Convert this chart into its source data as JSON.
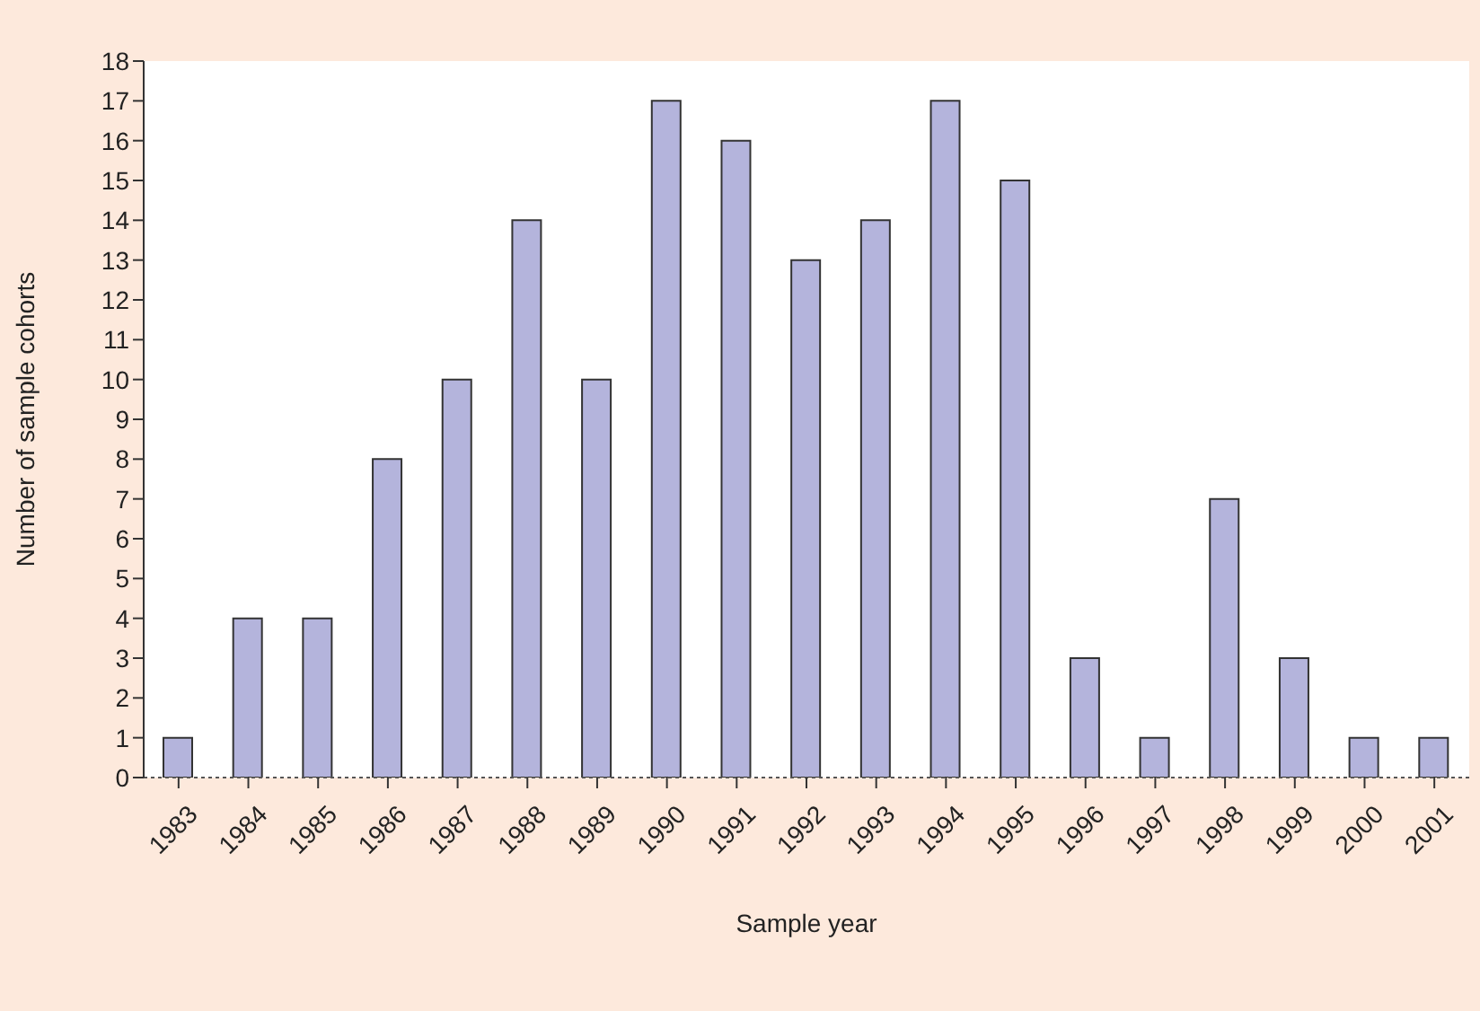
{
  "chart_data": {
    "type": "bar",
    "xlabel": "Sample year",
    "ylabel": "Number of sample cohorts",
    "categories": [
      "1983",
      "1984",
      "1985",
      "1986",
      "1987",
      "1988",
      "1989",
      "1990",
      "1991",
      "1992",
      "1993",
      "1994",
      "1995",
      "1996",
      "1997",
      "1998",
      "1999",
      "2000",
      "2001"
    ],
    "values": [
      1,
      4,
      4,
      8,
      10,
      14,
      10,
      17,
      16,
      13,
      14,
      17,
      15,
      3,
      1,
      7,
      3,
      1,
      1
    ],
    "color": "#b4b4dc",
    "ylim": [
      0,
      18
    ],
    "yticks": [
      0,
      1,
      2,
      3,
      4,
      5,
      6,
      7,
      8,
      9,
      10,
      11,
      12,
      13,
      14,
      15,
      16,
      17,
      18
    ],
    "grid": false,
    "legend": false
  }
}
